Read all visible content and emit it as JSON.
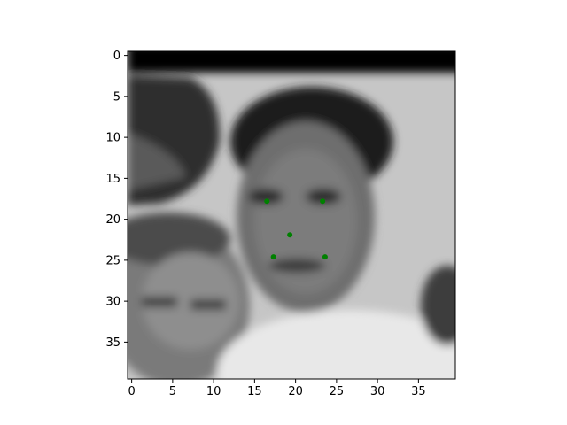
{
  "chart_data": {
    "type": "scatter",
    "title": "",
    "xlabel": "",
    "ylabel": "",
    "xlim": [
      -0.5,
      39.5
    ],
    "ylim": [
      39.5,
      -0.5
    ],
    "x_ticks": [
      0,
      5,
      10,
      15,
      20,
      25,
      30,
      35
    ],
    "y_ticks": [
      0,
      5,
      10,
      15,
      20,
      25,
      30,
      35
    ],
    "background_image": "grayscale 40x40 face photograph (imshow)",
    "grid": false,
    "legend": "none",
    "marker_color": "#008000",
    "series": [
      {
        "points": [
          {
            "x": 16.5,
            "y": 17.8
          },
          {
            "x": 23.3,
            "y": 17.8
          },
          {
            "x": 19.3,
            "y": 21.9
          },
          {
            "x": 17.3,
            "y": 24.6
          },
          {
            "x": 23.6,
            "y": 24.6
          }
        ]
      }
    ]
  }
}
